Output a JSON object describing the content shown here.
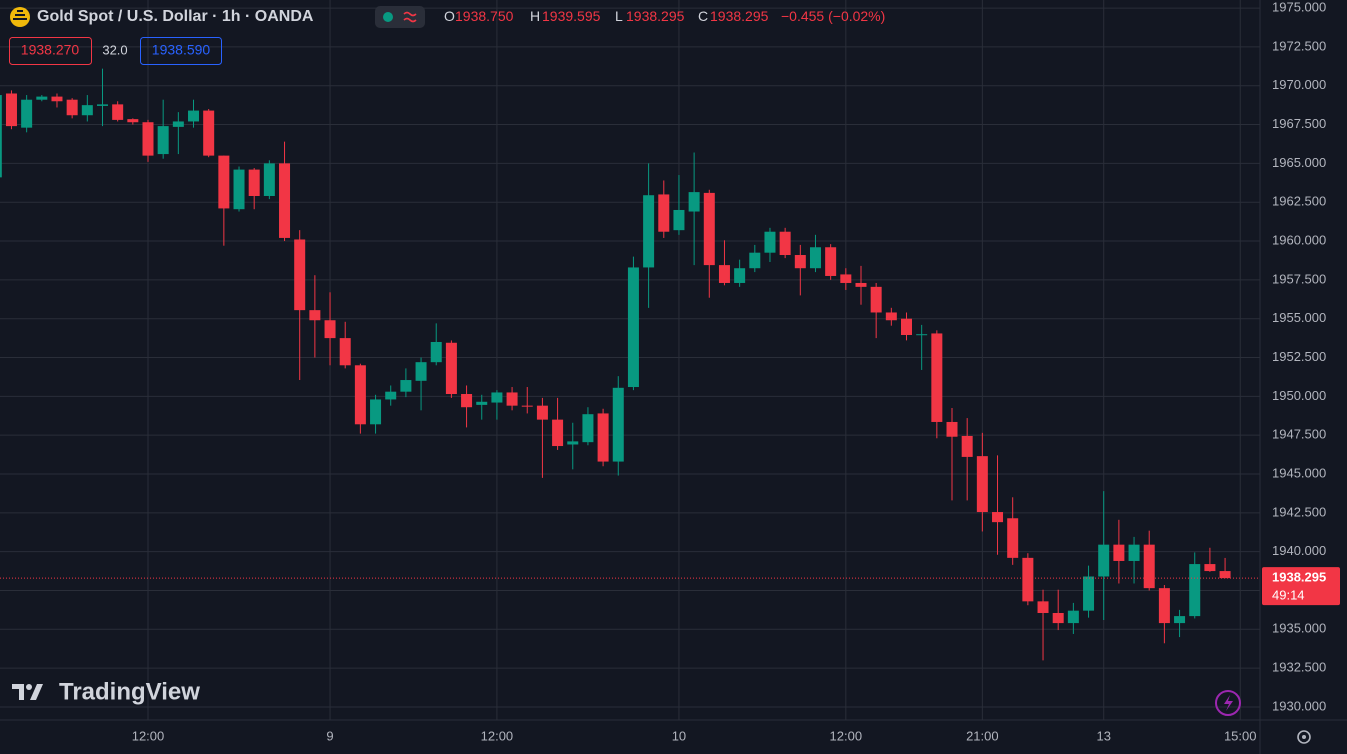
{
  "header": {
    "symbol": "Gold Spot / U.S. Dollar · 1h · OANDA",
    "ohlc": [
      {
        "label": "O",
        "value": "1938.750"
      },
      {
        "label": "H",
        "value": "1939.595"
      },
      {
        "label": "L",
        "value": "1938.295"
      },
      {
        "label": "C",
        "value": "1938.295"
      }
    ],
    "change": "−0.455 (−0.02%)",
    "sell_price": "1938.270",
    "spread": "32.0",
    "buy_price": "1938.590"
  },
  "watermark": "TradingView",
  "chart_data": {
    "type": "candlestick",
    "categories": [
      null,
      null,
      null,
      null,
      null,
      null,
      null,
      null,
      null,
      null,
      "12:00",
      null,
      null,
      null,
      null,
      null,
      null,
      null,
      null,
      null,
      null,
      null,
      "9",
      null,
      null,
      null,
      null,
      null,
      null,
      null,
      null,
      null,
      null,
      "12:00",
      null,
      null,
      null,
      null,
      null,
      null,
      null,
      null,
      null,
      null,
      null,
      "10",
      null,
      null,
      null,
      null,
      null,
      null,
      null,
      null,
      null,
      null,
      "12:00",
      null,
      null,
      null,
      null,
      null,
      null,
      null,
      null,
      "21:00",
      null,
      null,
      null,
      null,
      null,
      null,
      null,
      "13",
      null,
      null,
      null,
      null,
      null,
      null,
      null,
      null,
      "15:00"
    ],
    "open": [
      1964.1,
      1969.5,
      1967.3,
      1969.1,
      1969.3,
      1969.1,
      1968.1,
      1968.7,
      1968.8,
      1967.85,
      1967.65,
      1965.6,
      1967.35,
      1967.7,
      1968.4,
      1965.5,
      1962.05,
      1964.6,
      1962.9,
      1965.0,
      1960.1,
      1955.55,
      1954.9,
      1953.75,
      1952.0,
      1948.2,
      1949.8,
      1950.3,
      1951.0,
      1952.2,
      1953.45,
      1950.15,
      1949.45,
      1949.6,
      1950.25,
      1949.4,
      1949.4,
      1948.5,
      1946.9,
      1947.05,
      1948.9,
      1945.8,
      1950.6,
      1958.3,
      1963.0,
      1960.7,
      1961.9,
      1963.1,
      1958.45,
      1957.3,
      1958.25,
      1959.25,
      1960.6,
      1959.1,
      1958.25,
      1959.6,
      1957.85,
      1957.3,
      1957.05,
      1955.4,
      1955.0,
      1953.95,
      1954.05,
      1948.35,
      1947.45,
      1946.15,
      1942.55,
      1942.15,
      1939.6,
      1936.8,
      1936.05,
      1935.4,
      1936.2,
      1938.4,
      1940.45,
      1939.4,
      1940.45,
      1937.65,
      1935.4,
      1935.85,
      1939.2,
      1938.75,
      null
    ],
    "high": [
      1969.7,
      1969.7,
      1969.4,
      1969.4,
      1969.5,
      1969.2,
      1969.4,
      1971.1,
      1969.0,
      1967.9,
      1967.8,
      1969.1,
      1968.3,
      1969.1,
      1968.5,
      1965.5,
      1964.8,
      1964.7,
      1965.2,
      1966.4,
      1960.7,
      1957.8,
      1956.7,
      1954.8,
      1952.1,
      1950.1,
      1950.7,
      1951.8,
      1952.5,
      1954.7,
      1953.6,
      1950.7,
      1950.1,
      1950.4,
      1950.6,
      1950.6,
      1949.9,
      1949.9,
      1948.3,
      1949.3,
      1949.2,
      1951.3,
      1959.0,
      1965.0,
      1963.9,
      1964.25,
      1965.7,
      1963.3,
      1960.05,
      1958.8,
      1959.75,
      1960.85,
      1960.85,
      1959.75,
      1960.4,
      1959.8,
      1958.25,
      1958.4,
      1957.3,
      1955.7,
      1955.4,
      1954.6,
      1954.25,
      1949.25,
      1948.6,
      1947.65,
      1946.2,
      1943.5,
      1939.9,
      1937.55,
      1937.55,
      1936.7,
      1939.1,
      1943.9,
      1942.05,
      1940.95,
      1941.35,
      1937.85,
      1936.25,
      1939.95,
      1940.25,
      1939.595,
      null
    ],
    "low": [
      1964.0,
      1967.2,
      1967.0,
      1969.0,
      1968.6,
      1967.9,
      1967.7,
      1967.4,
      1967.7,
      1967.5,
      1965.1,
      1965.3,
      1965.6,
      1967.3,
      1965.4,
      1959.7,
      1961.9,
      1962.05,
      1962.7,
      1960.0,
      1951.05,
      1952.5,
      1952.0,
      1951.8,
      1947.6,
      1947.6,
      1949.4,
      1949.95,
      1949.1,
      1952.0,
      1949.9,
      1948.0,
      1948.5,
      1948.5,
      1949.1,
      1948.9,
      1944.75,
      1946.55,
      1945.3,
      1946.85,
      1945.5,
      1944.9,
      1950.4,
      1955.7,
      1960.2,
      1960.4,
      1958.45,
      1956.35,
      1957.15,
      1957.05,
      1958.0,
      1958.65,
      1958.9,
      1956.5,
      1958.0,
      1957.5,
      1956.85,
      1955.9,
      1953.75,
      1954.55,
      1953.6,
      1951.7,
      1947.3,
      1943.3,
      1943.3,
      1941.3,
      1939.8,
      1939.15,
      1936.55,
      1933.0,
      1934.95,
      1934.7,
      1935.75,
      1935.6,
      1937.95,
      1937.95,
      1937.5,
      1934.1,
      1934.5,
      1935.7,
      1938.7,
      1938.295,
      null
    ],
    "close": [
      1969.4,
      1967.4,
      1969.1,
      1969.3,
      1969.0,
      1968.1,
      1968.75,
      1968.8,
      1967.8,
      1967.65,
      1965.5,
      1967.4,
      1967.7,
      1968.4,
      1965.5,
      1962.1,
      1964.6,
      1962.9,
      1965.0,
      1960.2,
      1955.55,
      1954.9,
      1953.75,
      1952.0,
      1948.2,
      1949.8,
      1950.3,
      1951.05,
      1952.2,
      1953.5,
      1950.15,
      1949.3,
      1949.65,
      1950.25,
      1949.4,
      1949.35,
      1948.5,
      1946.8,
      1947.1,
      1948.85,
      1945.8,
      1950.55,
      1958.3,
      1962.95,
      1960.6,
      1962.0,
      1963.15,
      1958.45,
      1957.3,
      1958.25,
      1959.25,
      1960.6,
      1959.1,
      1958.25,
      1959.6,
      1957.75,
      1957.3,
      1957.05,
      1955.4,
      1954.9,
      1953.95,
      1954.0,
      1948.35,
      1947.4,
      1946.1,
      1942.55,
      1941.9,
      1939.6,
      1936.8,
      1936.05,
      1935.4,
      1936.2,
      1938.4,
      1940.45,
      1939.4,
      1940.45,
      1937.65,
      1935.4,
      1935.85,
      1939.2,
      1938.75,
      1938.295,
      null
    ],
    "up_color": "#089981",
    "down_color": "#f23645",
    "ylim": [
      1929.16,
      1975.52
    ],
    "yticks": [
      {
        "value": 1930,
        "label": "1930.000"
      },
      {
        "value": 1932.5,
        "label": "1932.500"
      },
      {
        "value": 1935,
        "label": "1935.000"
      },
      {
        "value": 1937.5,
        "label": "1937.500"
      },
      {
        "value": 1940,
        "label": "1940.000"
      },
      {
        "value": 1942.5,
        "label": "1942.500"
      },
      {
        "value": 1945,
        "label": "1945.000"
      },
      {
        "value": 1947.5,
        "label": "1947.500"
      },
      {
        "value": 1950,
        "label": "1950.000"
      },
      {
        "value": 1952.5,
        "label": "1952.500"
      },
      {
        "value": 1955,
        "label": "1955.000"
      },
      {
        "value": 1957.5,
        "label": "1957.500"
      },
      {
        "value": 1960,
        "label": "1960.000"
      },
      {
        "value": 1962.5,
        "label": "1962.500"
      },
      {
        "value": 1965,
        "label": "1965.000"
      },
      {
        "value": 1967.5,
        "label": "1967.500"
      },
      {
        "value": 1970,
        "label": "1970.000"
      },
      {
        "value": 1972.5,
        "label": "1972.500"
      },
      {
        "value": 1975,
        "label": "1975.000"
      }
    ],
    "grid": true,
    "last_price": 1938.295,
    "countdown": "49:14"
  }
}
